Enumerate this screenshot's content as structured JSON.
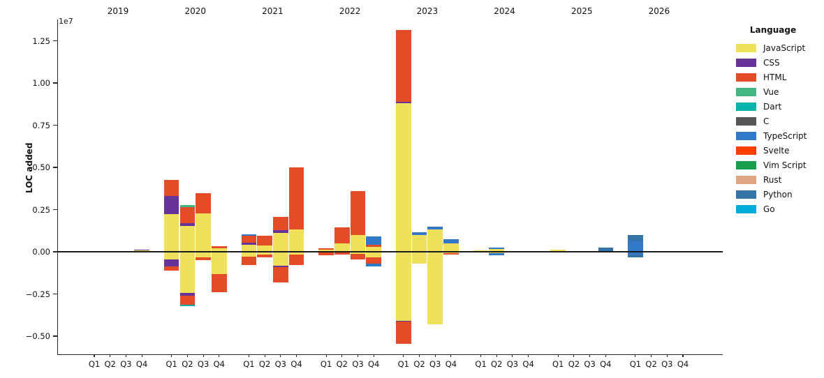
{
  "y_axis": {
    "label": "LOC added",
    "offset_text": "1e7",
    "tick_values": [
      1.25,
      1.0,
      0.75,
      0.5,
      0.25,
      0.0,
      -0.25,
      -0.5
    ],
    "tick_labels": [
      "1.25",
      "1.00",
      "0.75",
      "0.50",
      "0.25",
      "0.00",
      "−0.25",
      "−0.50"
    ]
  },
  "x_axis": {
    "years": [
      "2019",
      "2020",
      "2021",
      "2022",
      "2023",
      "2024",
      "2025",
      "2026"
    ],
    "quarters": [
      "Q1",
      "Q2",
      "Q3",
      "Q4"
    ]
  },
  "legend": {
    "title": "Language",
    "entries": [
      {
        "label": "JavaScript",
        "color": "#f1e05a"
      },
      {
        "label": "CSS",
        "color": "#663399"
      },
      {
        "label": "HTML",
        "color": "#e34c26"
      },
      {
        "label": "Vue",
        "color": "#41b883"
      },
      {
        "label": "Dart",
        "color": "#00b4ab"
      },
      {
        "label": "C",
        "color": "#555555"
      },
      {
        "label": "TypeScript",
        "color": "#3178c6"
      },
      {
        "label": "Svelte",
        "color": "#ff3e00"
      },
      {
        "label": "Vim Script",
        "color": "#199f4b"
      },
      {
        "label": "Rust",
        "color": "#dea584"
      },
      {
        "label": "Python",
        "color": "#3572a5"
      },
      {
        "label": "Go",
        "color": "#00add8"
      }
    ]
  },
  "chart_data": {
    "type": "bar",
    "stacked": true,
    "title": "",
    "xlabel": "",
    "ylabel": "LOC added",
    "y_scale_factor": 10000000,
    "ylim": [
      -6070000,
      13550000
    ],
    "grid": false,
    "legend_position": "right",
    "stack_order": [
      "JavaScript",
      "CSS",
      "HTML",
      "Vue",
      "Dart",
      "C",
      "TypeScript",
      "Svelte",
      "Vim Script",
      "Rust",
      "Python",
      "Go"
    ],
    "note": "values in LOC; 'added' stacks above zero, 'removed' stacks below zero",
    "values": {
      "2019Q4": {
        "added": {
          "JavaScript": 100000,
          "CSS": 40000
        },
        "removed": {}
      },
      "2020Q1": {
        "added": {
          "JavaScript": 2230000,
          "CSS": 1070000,
          "HTML": 950000
        },
        "removed": {
          "JavaScript": 440000,
          "CSS": 410000,
          "HTML": 270000
        }
      },
      "2020Q2": {
        "added": {
          "JavaScript": 1530000,
          "CSS": 170000,
          "HTML": 950000,
          "Vue": 100000
        },
        "removed": {
          "JavaScript": 2440000,
          "CSS": 180000,
          "HTML": 510000,
          "Dart": 100000
        }
      },
      "2020Q3": {
        "added": {
          "JavaScript": 2270000,
          "HTML": 1190000
        },
        "removed": {
          "JavaScript": 340000,
          "HTML": 170000
        }
      },
      "2020Q4": {
        "added": {
          "JavaScript": 200000,
          "HTML": 140000
        },
        "removed": {
          "JavaScript": 1310000,
          "HTML": 1100000
        }
      },
      "2021Q1": {
        "added": {
          "JavaScript": 430000,
          "CSS": 100000,
          "HTML": 410000,
          "TypeScript": 100000
        },
        "removed": {
          "JavaScript": 300000,
          "HTML": 480000
        }
      },
      "2021Q2": {
        "added": {
          "JavaScript": 390000,
          "HTML": 550000
        },
        "removed": {
          "JavaScript": 170000,
          "HTML": 180000
        }
      },
      "2021Q3": {
        "added": {
          "JavaScript": 1100000,
          "CSS": 180000,
          "HTML": 790000
        },
        "removed": {
          "JavaScript": 810000,
          "CSS": 110000,
          "HTML": 900000
        }
      },
      "2021Q4": {
        "added": {
          "JavaScript": 1310000,
          "HTML": 3690000
        },
        "removed": {
          "JavaScript": 150000,
          "HTML": 620000
        }
      },
      "2022Q1": {
        "added": {
          "JavaScript": 110000,
          "HTML": 110000
        },
        "removed": {
          "JavaScript": 50000,
          "HTML": 150000
        }
      },
      "2022Q2": {
        "added": {
          "JavaScript": 480000,
          "HTML": 980000
        },
        "removed": {
          "JavaScript": 60000,
          "HTML": 120000
        }
      },
      "2022Q3": {
        "added": {
          "JavaScript": 1000000,
          "HTML": 2600000
        },
        "removed": {
          "JavaScript": 120000,
          "HTML": 330000
        }
      },
      "2022Q4": {
        "added": {
          "JavaScript": 290000,
          "HTML": 140000,
          "TypeScript": 480000
        },
        "removed": {
          "JavaScript": 340000,
          "HTML": 370000,
          "TypeScript": 140000
        }
      },
      "2023Q1": {
        "added": {
          "JavaScript": 8810000,
          "CSS": 80000,
          "HTML": 4250000
        },
        "removed": {
          "JavaScript": 4090000,
          "CSS": 60000,
          "HTML": 1300000
        }
      },
      "2023Q2": {
        "added": {
          "JavaScript": 1000000,
          "TypeScript": 170000
        },
        "removed": {
          "JavaScript": 690000
        }
      },
      "2023Q3": {
        "added": {
          "JavaScript": 1310000,
          "TypeScript": 170000
        },
        "removed": {
          "JavaScript": 4300000
        }
      },
      "2023Q4": {
        "added": {
          "JavaScript": 500000,
          "TypeScript": 240000
        },
        "removed": {
          "JavaScript": 80000,
          "HTML": 100000
        }
      },
      "2024Q1": {
        "added": {
          "JavaScript": 80000
        },
        "removed": {}
      },
      "2024Q2": {
        "added": {
          "JavaScript": 180000,
          "TypeScript": 80000
        },
        "removed": {
          "JavaScript": 100000,
          "TypeScript": 110000
        }
      },
      "2025Q1": {
        "added": {
          "JavaScript": 110000
        },
        "removed": {}
      },
      "2025Q4": {
        "added": {
          "Python": 250000
        },
        "removed": {}
      },
      "2026Q1": {
        "added": {
          "TypeScript": 660000,
          "Python": 330000
        },
        "removed": {
          "TypeScript": 170000,
          "Python": 170000
        }
      }
    }
  }
}
